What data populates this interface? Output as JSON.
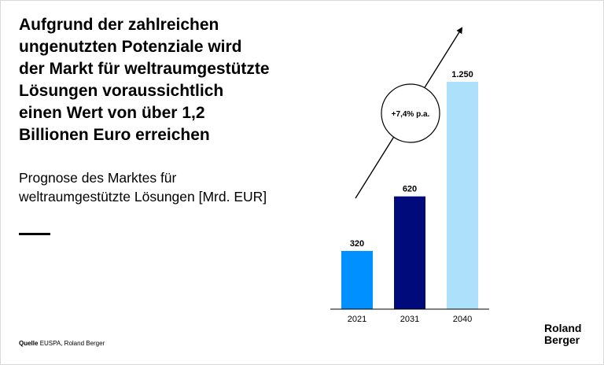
{
  "headline": "Aufgrund der zahlreichen ungenutzten Potenziale wird der Markt für weltraumgestützte Lösungen voraussichtlich einen Wert von über 1,2 Billionen Euro erreichen",
  "subtitle": "Prognose des Marktes für weltraumgestützte Lösungen [Mrd. EUR]",
  "source": {
    "label": "Quelle",
    "text": "EUSPA, Roland Berger"
  },
  "logo": {
    "line1": "Roland",
    "line2": "Berger"
  },
  "chart_data": {
    "type": "bar",
    "categories": [
      "2021",
      "2031",
      "2040"
    ],
    "values": [
      320,
      620,
      1250
    ],
    "value_labels": [
      "320",
      "620",
      "1.250"
    ],
    "colors": [
      "#0090ff",
      "#000a7a",
      "#ade1fb"
    ],
    "growth_annotation": "+7,4% p.a.",
    "ylim": [
      0,
      1250
    ],
    "grid": false,
    "legend": "none"
  }
}
